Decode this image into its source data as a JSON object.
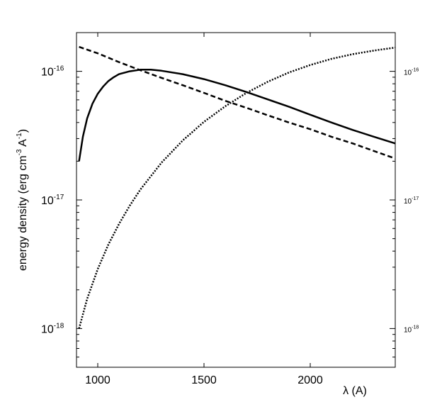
{
  "chart_data": {
    "type": "line",
    "title": "",
    "xlabel": "λ (A)",
    "ylabel": "energy density (erg cm",
    "ylabel_sup1": "-3",
    "ylabel_mid": " A",
    "ylabel_sup2": "-1",
    "ylabel_end": ")",
    "xlim": [
      900,
      2400
    ],
    "ylim": [
      5e-19,
      2e-16
    ],
    "yscale": "log",
    "grid": false,
    "legend": "none",
    "x_ticks": [
      1000,
      1500,
      2000
    ],
    "x_tick_labels": [
      "1000",
      "1500",
      "2000"
    ],
    "y_ticks": [
      1e-18,
      1e-17,
      1e-16
    ],
    "y_tick_labels_base": [
      "10",
      "10",
      "10"
    ],
    "y_tick_labels_exp": [
      "-18",
      "-17",
      "-16"
    ],
    "series": [
      {
        "style": "solid",
        "x": [
          912,
          930,
          950,
          975,
          1000,
          1025,
          1050,
          1075,
          1100,
          1150,
          1200,
          1250,
          1300,
          1400,
          1500,
          1600,
          1700,
          1800,
          1900,
          2000,
          2100,
          2200,
          2300,
          2400
        ],
        "values": [
          2e-17,
          3.1e-17,
          4.3e-17,
          5.6e-17,
          6.7e-17,
          7.6e-17,
          8.4e-17,
          9e-17,
          9.5e-17,
          1e-16,
          1.03e-16,
          1.03e-16,
          1.01e-16,
          9.5e-17,
          8.7e-17,
          7.8e-17,
          6.9e-17,
          6.05e-17,
          5.3e-17,
          4.6e-17,
          4e-17,
          3.5e-17,
          3.1e-17,
          2.75e-17
        ]
      },
      {
        "style": "dashed",
        "x": [
          912,
          1000,
          1100,
          1200,
          1300,
          1400,
          1500,
          1600,
          1700,
          1800,
          1900,
          2000,
          2100,
          2200,
          2300,
          2400
        ],
        "values": [
          1.55e-16,
          1.38e-16,
          1.18e-16,
          1.02e-16,
          8.9e-17,
          7.8e-17,
          6.8e-17,
          5.9e-17,
          5.2e-17,
          4.55e-17,
          4e-17,
          3.55e-17,
          3.1e-17,
          2.75e-17,
          2.4e-17,
          2.1e-17
        ]
      },
      {
        "style": "dotted",
        "x": [
          912,
          950,
          1000,
          1050,
          1100,
          1150,
          1200,
          1300,
          1400,
          1500,
          1600,
          1700,
          1800,
          1900,
          2000,
          2100,
          2200,
          2300,
          2400
        ],
        "values": [
          1e-18,
          1.7e-18,
          2.9e-18,
          4.5e-18,
          6.5e-18,
          9e-18,
          1.2e-17,
          1.95e-17,
          2.9e-17,
          4.05e-17,
          5.35e-17,
          6.8e-17,
          8.3e-17,
          9.8e-17,
          1.12e-16,
          1.25e-16,
          1.36e-16,
          1.45e-16,
          1.53e-16
        ]
      }
    ]
  }
}
